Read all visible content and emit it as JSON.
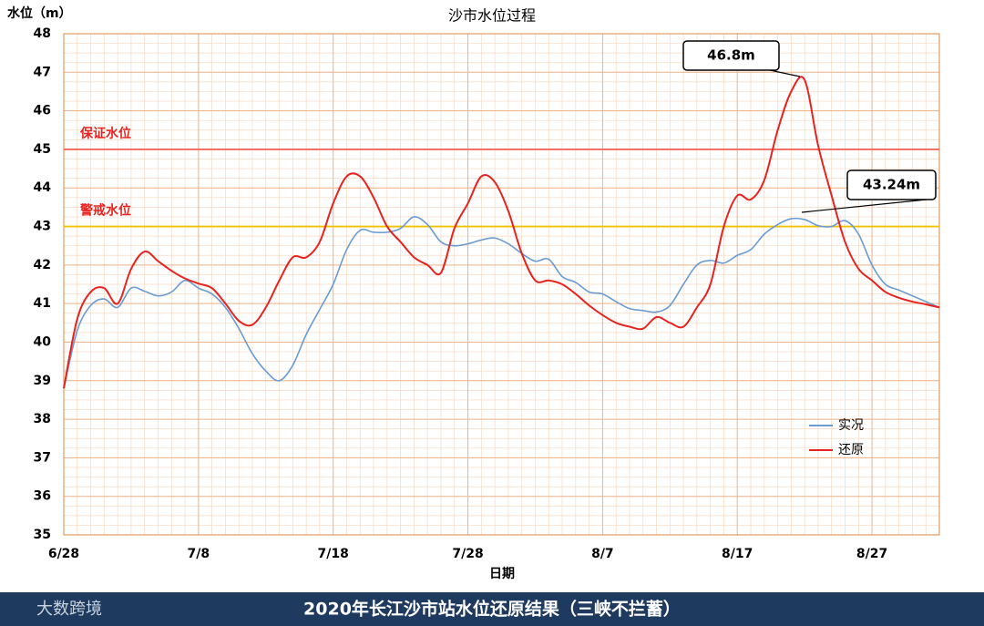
{
  "chart_data": {
    "type": "line",
    "title": "沙市水位过程",
    "ylabel": "水位（m）",
    "xlabel": "日期",
    "categories": [
      "6/28",
      null,
      null,
      null,
      null,
      null,
      null,
      null,
      null,
      null,
      "7/8",
      null,
      null,
      null,
      null,
      null,
      null,
      null,
      null,
      null,
      "7/18",
      null,
      null,
      null,
      null,
      null,
      null,
      null,
      null,
      null,
      "7/28",
      null,
      null,
      null,
      null,
      null,
      null,
      null,
      null,
      null,
      "8/7",
      null,
      null,
      null,
      null,
      null,
      null,
      null,
      null,
      null,
      "8/17",
      null,
      null,
      null,
      null,
      null,
      null,
      null,
      null,
      null,
      "8/27",
      null,
      null,
      null,
      null,
      null
    ],
    "series": [
      {
        "name": "实况",
        "color": "#6a9bd1",
        "values": [
          38.8,
          40.3,
          40.95,
          41.12,
          40.9,
          41.4,
          41.32,
          41.2,
          41.3,
          41.6,
          41.4,
          41.25,
          40.9,
          40.35,
          39.7,
          39.25,
          39.0,
          39.4,
          40.2,
          40.85,
          41.5,
          42.4,
          42.9,
          42.85,
          42.85,
          42.95,
          43.25,
          43.05,
          42.6,
          42.5,
          42.55,
          42.65,
          42.7,
          42.55,
          42.3,
          42.1,
          42.15,
          41.7,
          41.55,
          41.3,
          41.25,
          41.05,
          40.87,
          40.82,
          40.78,
          40.95,
          41.5,
          42.0,
          42.12,
          42.05,
          42.25,
          42.4,
          42.8,
          43.05,
          43.2,
          43.18,
          43.02,
          43.0,
          43.15,
          42.8,
          42.0,
          41.5,
          41.35,
          41.2,
          41.05,
          40.9
        ]
      },
      {
        "name": "还原",
        "color": "#e8231f",
        "values": [
          38.8,
          40.6,
          41.3,
          41.4,
          41.0,
          41.9,
          42.35,
          42.1,
          41.85,
          41.65,
          41.52,
          41.4,
          41.0,
          40.55,
          40.45,
          40.9,
          41.6,
          42.2,
          42.2,
          42.6,
          43.6,
          44.3,
          44.3,
          43.75,
          43.0,
          42.6,
          42.2,
          42.0,
          41.8,
          42.95,
          43.6,
          44.3,
          44.15,
          43.4,
          42.3,
          41.6,
          41.6,
          41.5,
          41.25,
          40.95,
          40.7,
          40.5,
          40.4,
          40.35,
          40.65,
          40.5,
          40.4,
          40.9,
          41.5,
          43.0,
          43.8,
          43.7,
          44.2,
          45.5,
          46.5,
          46.8,
          45.1,
          43.8,
          42.6,
          41.9,
          41.6,
          41.3,
          41.15,
          41.05,
          40.98,
          40.9
        ]
      }
    ],
    "ylim": [
      35,
      48
    ],
    "yticks": [
      35,
      36,
      37,
      38,
      39,
      40,
      41,
      42,
      43,
      44,
      45,
      46,
      47,
      48
    ],
    "grid": true,
    "reference_lines": [
      {
        "label": "保证水位",
        "value": 45,
        "color": "#f4665a"
      },
      {
        "label": "警戒水位",
        "value": 43,
        "color": "#f2c200"
      }
    ],
    "annotations": [
      {
        "text": "46.8m"
      },
      {
        "text": "43.24m"
      }
    ],
    "legend": "lower right"
  },
  "footer": {
    "logo": "大数跨境",
    "title": "2020年长江沙市站水位还原结果（三峡不拦蓄）"
  }
}
